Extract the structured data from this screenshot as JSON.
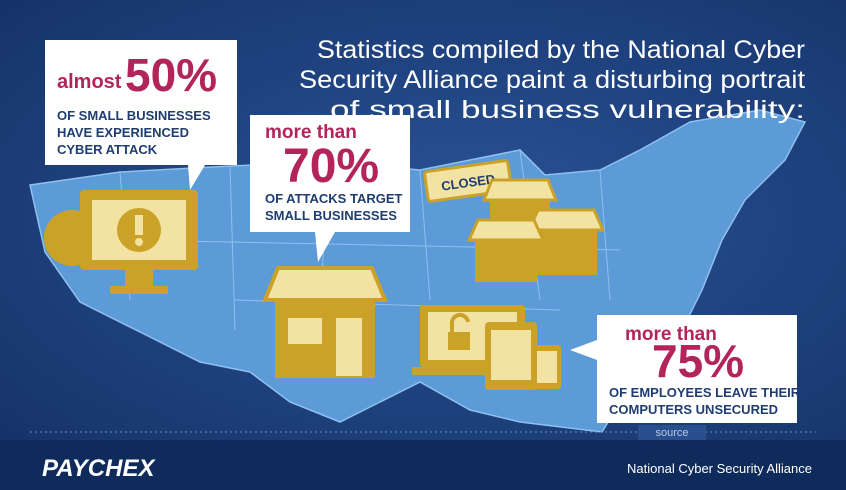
{
  "headline": [
    "Statistics compiled by the National Cyber",
    "Security Alliance paint a disturbing portrait",
    "of small business vulnerability:"
  ],
  "callouts": [
    {
      "prefix": "almost",
      "value": "50%",
      "description": [
        "OF SMALL BUSINESSES",
        "HAVE EXPERIENCED",
        "CYBER ATTACK"
      ]
    },
    {
      "prefix": "more than",
      "value": "70%",
      "description": [
        "OF ATTACKS TARGET",
        "SMALL BUSINESSES"
      ]
    },
    {
      "prefix": "more than",
      "value": "75%",
      "description": [
        "OF EMPLOYEES LEAVE THEIR",
        "COMPUTERS UNSECURED"
      ]
    }
  ],
  "sign": "CLOSED",
  "source_link": "source",
  "footer": {
    "brand": "PAYCHEX",
    "credit": "National Cyber Security Alliance"
  }
}
